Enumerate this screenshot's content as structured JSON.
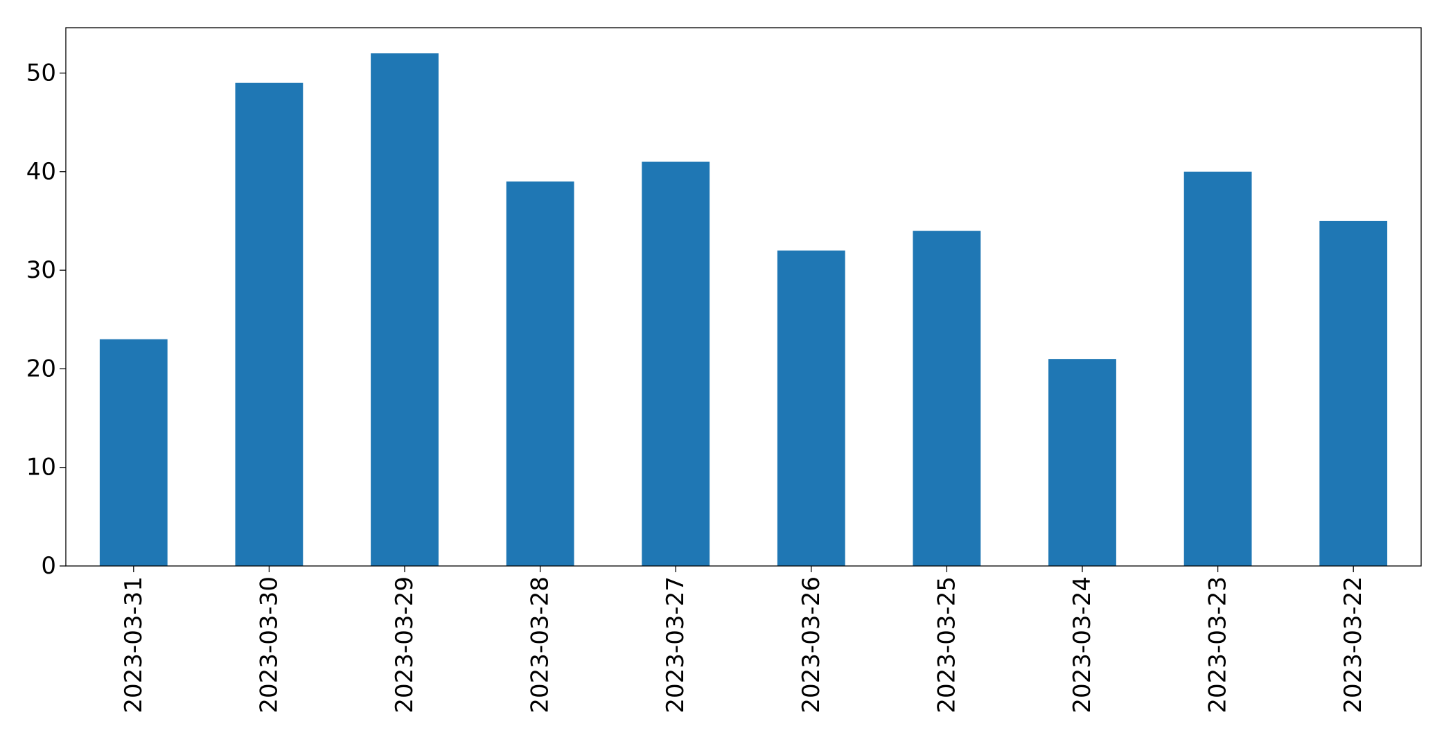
{
  "chart_data": {
    "type": "bar",
    "categories": [
      "2023-03-31",
      "2023-03-30",
      "2023-03-29",
      "2023-03-28",
      "2023-03-27",
      "2023-03-26",
      "2023-03-25",
      "2023-03-24",
      "2023-03-23",
      "2023-03-22"
    ],
    "values": [
      23,
      49,
      52,
      39,
      41,
      32,
      34,
      21,
      40,
      35
    ],
    "color": "#1f77b4",
    "ylim": [
      0,
      54.6
    ],
    "yticks": [
      0,
      10,
      20,
      30,
      40,
      50
    ],
    "grid": false
  }
}
